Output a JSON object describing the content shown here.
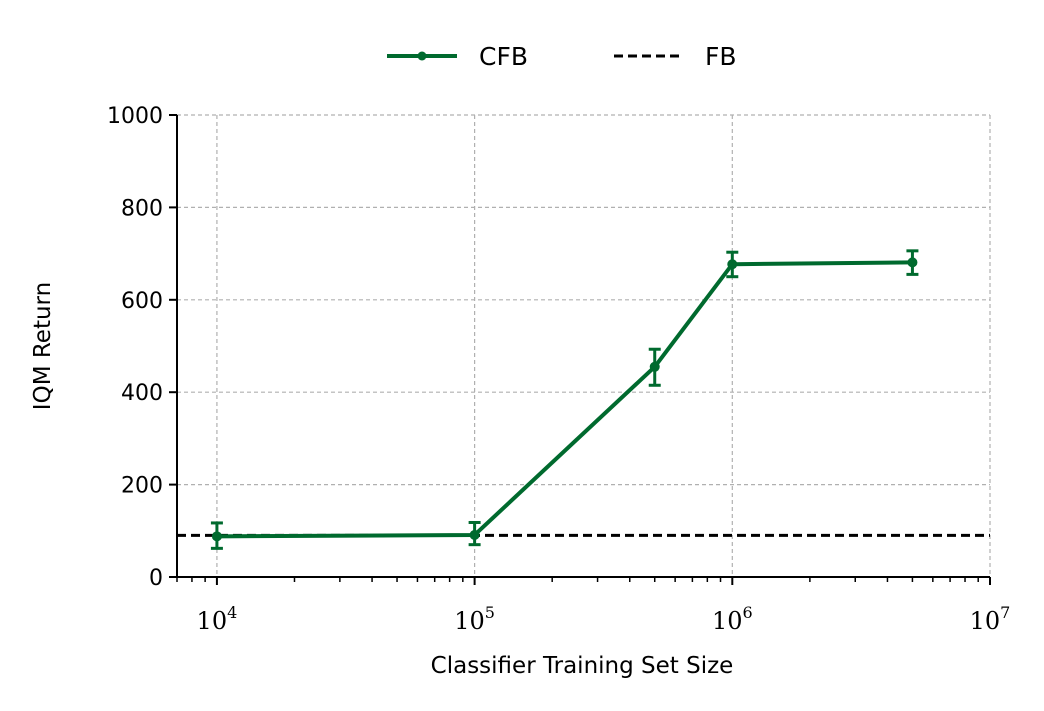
{
  "chart_data": {
    "type": "line",
    "xlabel": "Classifier Training Set Size",
    "ylabel": "IQM Return",
    "x_scale": "log",
    "xlim": [
      7000,
      10000000
    ],
    "ylim": [
      0,
      1000
    ],
    "x_ticks": [
      {
        "value": 10000,
        "base": "10",
        "exp": "4"
      },
      {
        "value": 100000,
        "base": "10",
        "exp": "5"
      },
      {
        "value": 1000000,
        "base": "10",
        "exp": "6"
      },
      {
        "value": 10000000,
        "base": "10",
        "exp": "7"
      }
    ],
    "y_ticks": [
      "0",
      "200",
      "400",
      "600",
      "800",
      "1000"
    ],
    "grid": true,
    "legend": {
      "placement": "top-center",
      "entries": [
        "CFB",
        "FB"
      ]
    },
    "series": [
      {
        "name": "CFB",
        "color": "#006a2e",
        "style": "solid-with-markers-and-errorbars",
        "x": [
          10000,
          100000,
          500000,
          1000000,
          5000000
        ],
        "y": [
          88,
          91,
          455,
          677,
          681
        ],
        "err_low": [
          62,
          70,
          415,
          650,
          655
        ],
        "err_high": [
          117,
          118,
          493,
          703,
          706
        ]
      },
      {
        "name": "FB",
        "color": "#000000",
        "style": "dashed-horizontal",
        "y": 90
      }
    ]
  }
}
